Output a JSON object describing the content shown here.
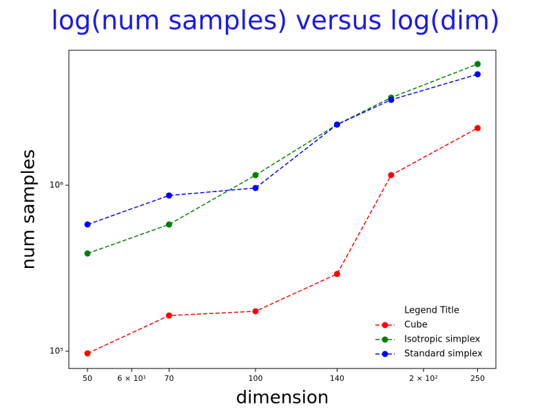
{
  "chart_data": {
    "type": "line",
    "title": "log(num samples) versus log(dim)",
    "xlabel": "dimension",
    "ylabel": "num samples",
    "x": [
      50,
      70,
      100,
      140,
      175,
      250
    ],
    "series": [
      {
        "name": "Cube",
        "color": "#ff0000",
        "values": [
          97000,
          164000,
          174000,
          292000,
          1150000,
          2210000
        ]
      },
      {
        "name": "Isotropic simplex",
        "color": "#007f00",
        "values": [
          388000,
          580000,
          1150000,
          2320000,
          3370000,
          5370000
        ]
      },
      {
        "name": "Standard simplex",
        "color": "#0000ff",
        "values": [
          580000,
          867000,
          962000,
          2320000,
          3270000,
          4660000
        ]
      }
    ],
    "xlim": [
      46.3,
      269.6
    ],
    "ylim": [
      78700,
      6500000
    ],
    "xticks": [
      50,
      {
        "value": 60,
        "label": "6 × 10¹"
      },
      70,
      100,
      140,
      {
        "value": 200,
        "label": "2 × 10²"
      },
      250
    ],
    "yticks": [
      {
        "value": 100000,
        "label": "10⁵"
      },
      {
        "value": 1000000,
        "label": "10⁶"
      }
    ],
    "xscale": "log",
    "yscale": "log",
    "legend_title": "Legend Title",
    "legend_position": "lower right",
    "title_color": "#1a1ae6"
  }
}
